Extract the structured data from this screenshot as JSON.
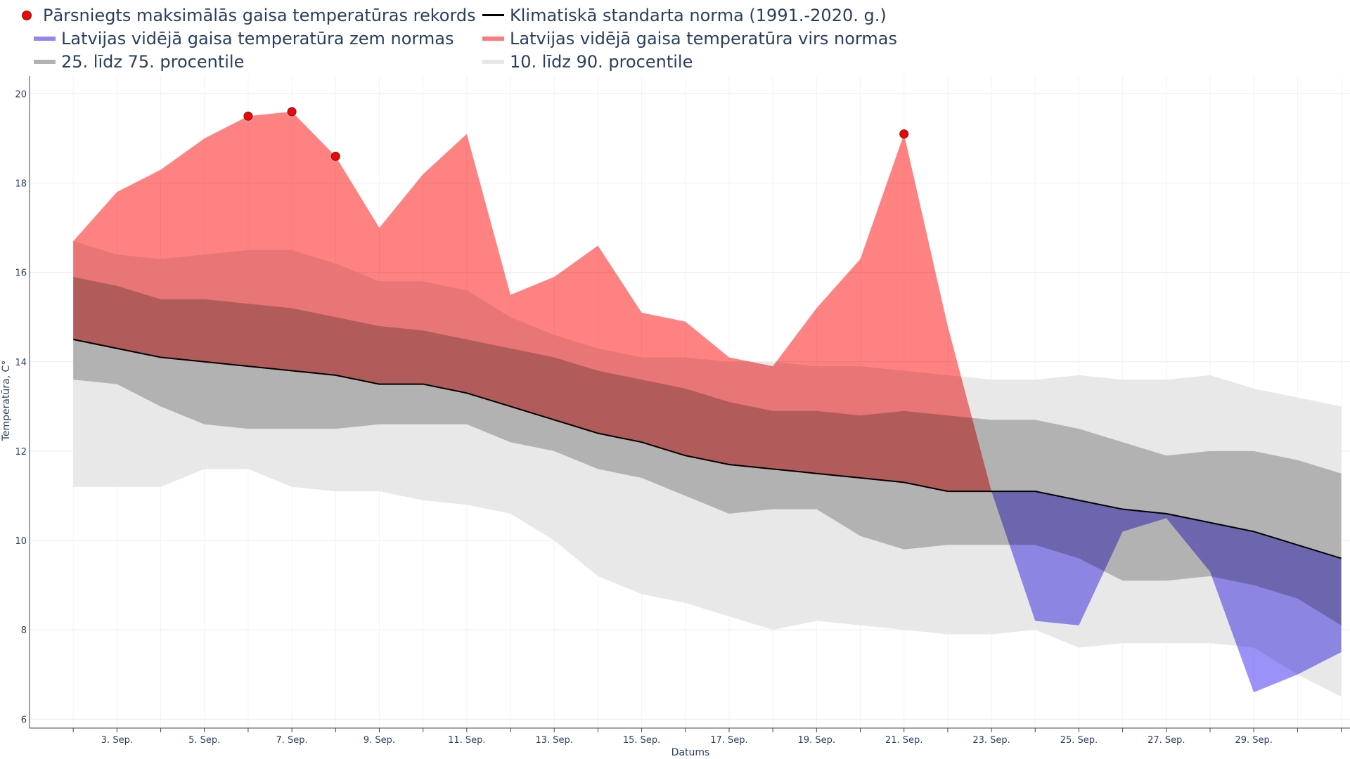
{
  "legend": {
    "record": "Pārsniegts maksimālās gaisa temperatūras rekords",
    "norm": "Klimatiskā standarta norma (1991.-2020. g.)",
    "below": "Latvijas vidējā gaisa temperatūra zem normas",
    "above": "Latvijas vidējā gaisa temperatūra virs normas",
    "p25_75": "25. līdz 75. procentile",
    "p10_90": "10. līdz 90. procentile"
  },
  "colors": {
    "above": "#ff7b7b",
    "below": "#8f86f8",
    "p25_75": "#b2b2b2",
    "p10_90": "#e8e8e8",
    "norm": "#000000",
    "record": "#ff0000",
    "text": "#2a3f5f"
  },
  "chart_data": {
    "type": "area",
    "xlabel": "Datums",
    "ylabel": "Temperatūra, C°",
    "ylim": [
      5.8,
      20.4
    ],
    "yticks": [
      6,
      8,
      10,
      12,
      14,
      16,
      18,
      20
    ],
    "grid": true,
    "legend_position": "top-left",
    "x": [
      2,
      3,
      4,
      5,
      6,
      7,
      8,
      9,
      10,
      11,
      12,
      13,
      14,
      15,
      16,
      17,
      18,
      19,
      20,
      21,
      22,
      23,
      24,
      25,
      26,
      27,
      28,
      29,
      30,
      31
    ],
    "xtick_values": [
      3,
      5,
      7,
      9,
      11,
      13,
      15,
      17,
      19,
      21,
      23,
      25,
      27,
      29
    ],
    "xtick_labels": [
      "3. Sep.",
      "5. Sep.",
      "7. Sep.",
      "9. Sep.",
      "11. Sep.",
      "13. Sep.",
      "15. Sep.",
      "17. Sep.",
      "19. Sep.",
      "21. Sep.",
      "23. Sep.",
      "25. Sep.",
      "27. Sep.",
      "29. Sep."
    ],
    "series": [
      {
        "name": "Klimatiskā standarta norma (1991.-2020. g.)",
        "role": "norm",
        "values": [
          14.5,
          14.3,
          14.1,
          14.0,
          13.9,
          13.8,
          13.7,
          13.5,
          13.5,
          13.3,
          13.0,
          12.7,
          12.4,
          12.2,
          11.9,
          11.7,
          11.6,
          11.5,
          11.4,
          11.3,
          11.1,
          11.1,
          11.1,
          10.9,
          10.7,
          10.6,
          10.4,
          10.2,
          9.9,
          9.6
        ]
      },
      {
        "name": "Latvijas vidējā gaisa temperatūra",
        "role": "actual",
        "values": [
          16.7,
          17.8,
          18.3,
          19.0,
          19.5,
          19.6,
          18.6,
          17.0,
          18.2,
          19.1,
          15.5,
          15.9,
          16.6,
          15.1,
          14.9,
          14.1,
          13.9,
          15.2,
          16.3,
          19.1,
          14.8,
          11.1,
          8.2,
          8.1,
          10.2,
          10.5,
          9.3,
          6.6,
          7.0,
          7.5
        ]
      },
      {
        "name": "25. līdz 75. procentile",
        "role": "p25_75",
        "low": [
          13.6,
          13.5,
          13.0,
          12.6,
          12.5,
          12.5,
          12.5,
          12.6,
          12.6,
          12.6,
          12.2,
          12.0,
          11.6,
          11.4,
          11.0,
          10.6,
          10.7,
          10.7,
          10.1,
          9.8,
          9.9,
          9.9,
          9.9,
          9.6,
          9.1,
          9.1,
          9.2,
          9.0,
          8.7,
          8.1
        ],
        "high": [
          15.9,
          15.7,
          15.4,
          15.4,
          15.3,
          15.2,
          15.0,
          14.8,
          14.7,
          14.5,
          14.3,
          14.1,
          13.8,
          13.6,
          13.4,
          13.1,
          12.9,
          12.9,
          12.8,
          12.9,
          12.8,
          12.7,
          12.7,
          12.5,
          12.2,
          11.9,
          12.0,
          12.0,
          11.8,
          11.5
        ]
      },
      {
        "name": "10. līdz 90. procentile",
        "role": "p10_90",
        "low": [
          11.2,
          11.2,
          11.2,
          11.6,
          11.6,
          11.2,
          11.1,
          11.1,
          10.9,
          10.8,
          10.6,
          10.0,
          9.2,
          8.8,
          8.6,
          8.3,
          8.0,
          8.2,
          8.1,
          8.0,
          7.9,
          7.9,
          8.0,
          7.6,
          7.7,
          7.7,
          7.7,
          7.6,
          7.0,
          6.5
        ],
        "high": [
          16.7,
          16.4,
          16.3,
          16.4,
          16.5,
          16.5,
          16.2,
          15.8,
          15.8,
          15.6,
          15.0,
          14.6,
          14.3,
          14.1,
          14.1,
          14.0,
          14.0,
          13.9,
          13.9,
          13.8,
          13.7,
          13.6,
          13.6,
          13.7,
          13.6,
          13.6,
          13.7,
          13.4,
          13.2,
          13.0
        ]
      },
      {
        "name": "Pārsniegts maksimālās gaisa temperatūras rekords",
        "role": "records",
        "x": [
          6,
          7,
          8,
          21
        ],
        "values": [
          19.5,
          19.6,
          18.6,
          19.1
        ]
      }
    ]
  }
}
